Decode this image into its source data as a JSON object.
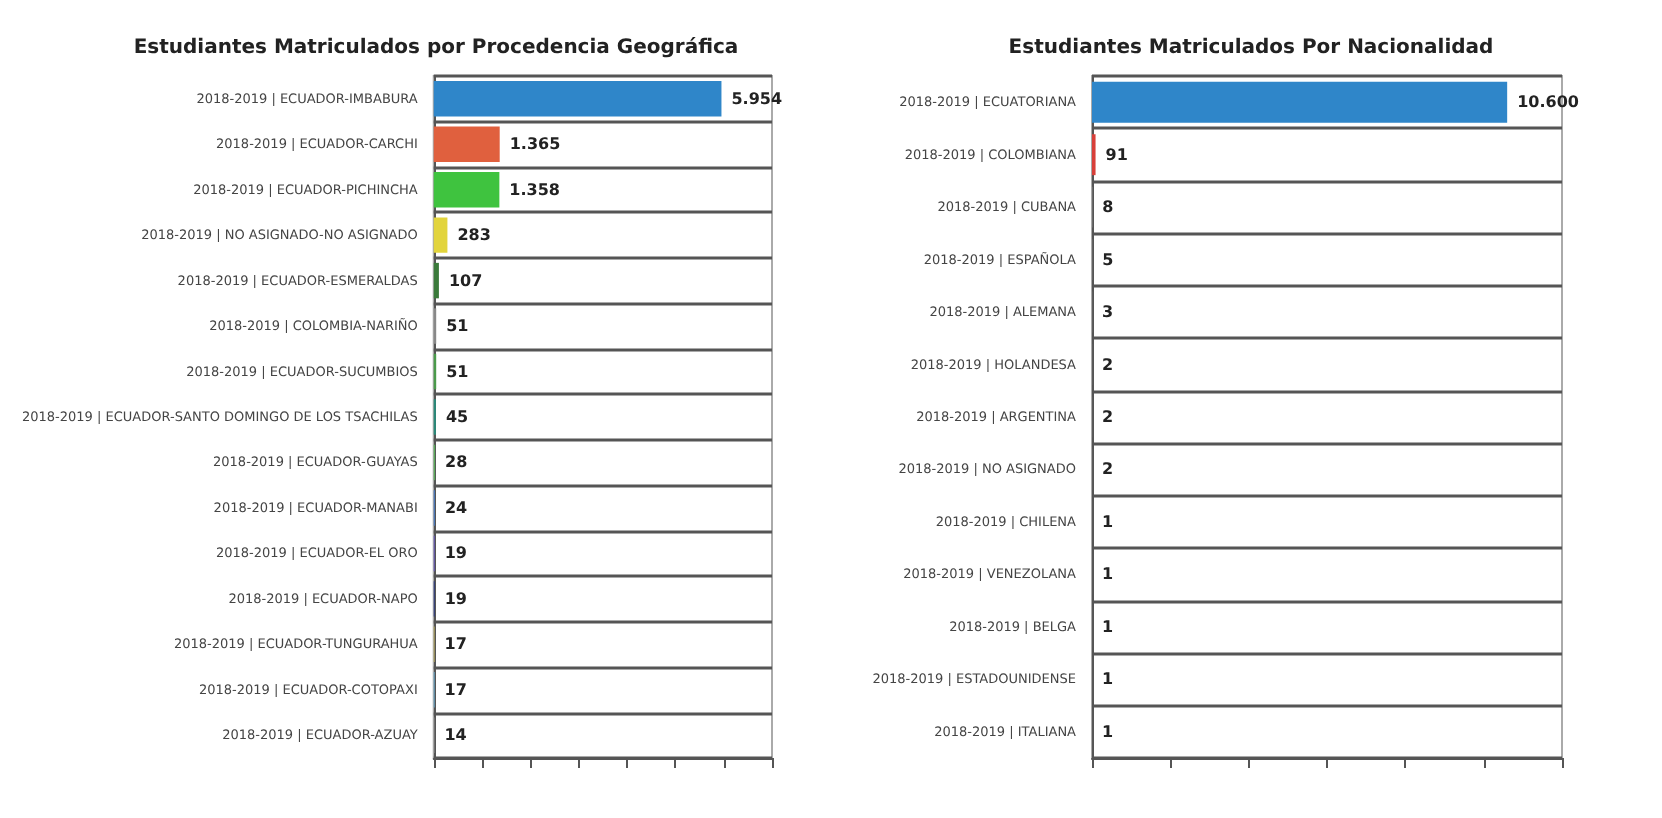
{
  "chart_data": [
    {
      "type": "bar",
      "orientation": "horizontal",
      "title": "Estudiantes Matriculados por Procedencia Geográfica",
      "categories": [
        "2018-2019 | ECUADOR-IMBABURA",
        "2018-2019 | ECUADOR-CARCHI",
        "2018-2019 | ECUADOR-PICHINCHA",
        "2018-2019 | NO ASIGNADO-NO ASIGNADO",
        "2018-2019 | ECUADOR-ESMERALDAS",
        "2018-2019 | COLOMBIA-NARIÑO",
        "2018-2019 | ECUADOR-SUCUMBIOS",
        "2018-2019 | ECUADOR-SANTO DOMINGO DE LOS TSACHILAS",
        "2018-2019 | ECUADOR-GUAYAS",
        "2018-2019 | ECUADOR-MANABI",
        "2018-2019 | ECUADOR-EL ORO",
        "2018-2019 | ECUADOR-NAPO",
        "2018-2019 | ECUADOR-TUNGURAHUA",
        "2018-2019 | ECUADOR-COTOPAXI",
        "2018-2019 | ECUADOR-AZUAY"
      ],
      "values": [
        5954,
        1365,
        1358,
        283,
        107,
        51,
        51,
        45,
        28,
        24,
        19,
        19,
        17,
        17,
        14
      ],
      "value_labels": [
        "5.954",
        "1.365",
        "1.358",
        "283",
        "107",
        "51",
        "51",
        "45",
        "28",
        "24",
        "19",
        "19",
        "17",
        "17",
        "14"
      ],
      "colors": [
        "#2f86c9",
        "#e0603e",
        "#3fc33f",
        "#e2d43c",
        "#3a7a3a",
        "#888888",
        "#4a9a4a",
        "#2a8a7a",
        "#5aaa5a",
        "#4a7ac0",
        "#6a5ac8",
        "#2a3a8a",
        "#c8b860",
        "#6ab8e0",
        "#999999"
      ],
      "xlim": [
        0,
        7000
      ],
      "xticks": [
        0,
        1000,
        2000,
        3000,
        4000,
        5000,
        6000,
        7000
      ],
      "tick_labels": "y",
      "grid": "y"
    },
    {
      "type": "bar",
      "orientation": "horizontal",
      "title": "Estudiantes Matriculados Por Nacionalidad",
      "categories": [
        "2018-2019 | ECUATORIANA",
        "2018-2019 | COLOMBIANA",
        "2018-2019 | CUBANA",
        "2018-2019 | ESPAÑOLA",
        "2018-2019 | ALEMANA",
        "2018-2019 | HOLANDESA",
        "2018-2019 | ARGENTINA",
        "2018-2019 | NO ASIGNADO",
        "2018-2019 | CHILENA",
        "2018-2019 | VENEZOLANA",
        "2018-2019 | BELGA",
        "2018-2019 | ESTADOUNIDENSE",
        "2018-2019 | ITALIANA"
      ],
      "values": [
        10600,
        91,
        8,
        5,
        3,
        2,
        2,
        2,
        1,
        1,
        1,
        1,
        1
      ],
      "value_labels": [
        "10.600",
        "91",
        "8",
        "5",
        "3",
        "2",
        "2",
        "2",
        "1",
        "1",
        "1",
        "1",
        "1"
      ],
      "colors": [
        "#2f86c9",
        "#d8403a",
        "#999999",
        "#999999",
        "#999999",
        "#999999",
        "#999999",
        "#999999",
        "#999999",
        "#999999",
        "#999999",
        "#999999",
        "#999999"
      ],
      "xlim": [
        0,
        12000
      ],
      "xticks": [
        0,
        2000,
        4000,
        6000,
        8000,
        10000,
        12000
      ],
      "tick_labels": "y",
      "grid": "y"
    }
  ]
}
